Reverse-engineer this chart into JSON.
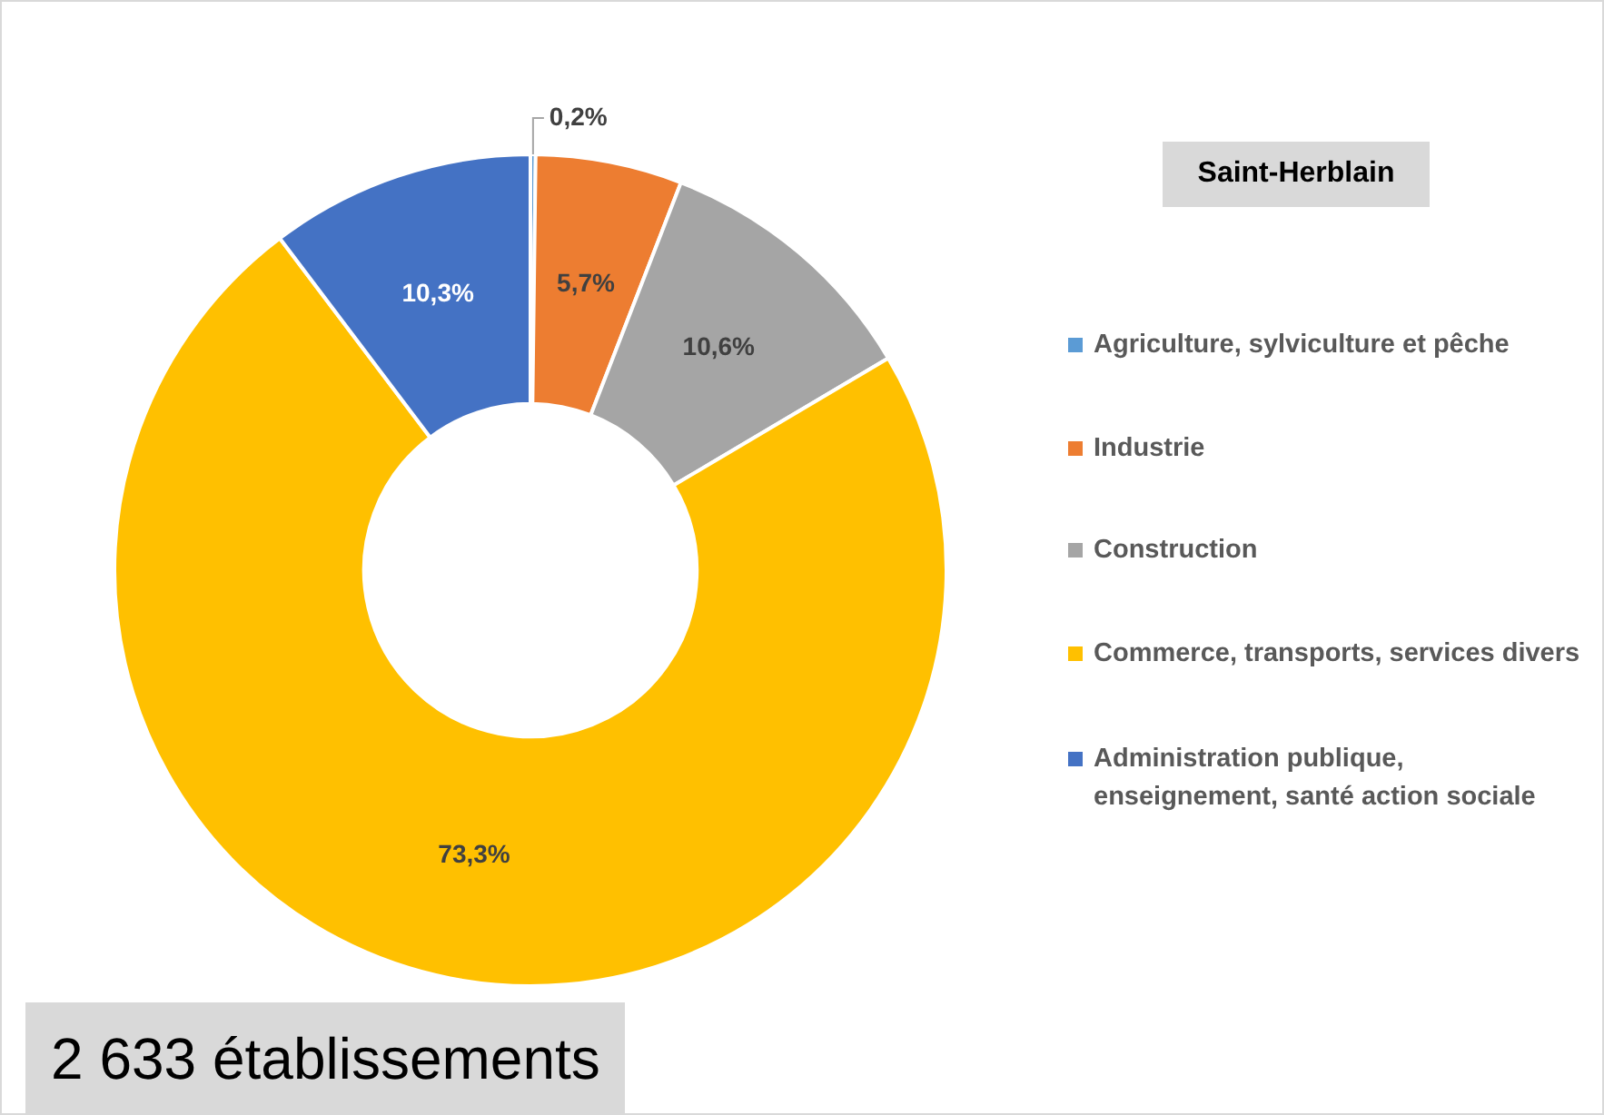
{
  "chart_data": {
    "type": "donut",
    "title": "Saint-Herblain",
    "categories": [
      "Agriculture, sylviculture et pêche",
      "Industrie",
      "Construction",
      "Commerce, transports, services divers",
      "Administration publique, enseignement, santé action sociale"
    ],
    "values": [
      0.2,
      5.7,
      10.6,
      73.3,
      10.3
    ],
    "value_labels": [
      "0,2%",
      "5,7%",
      "10,6%",
      "73,3%",
      "10,3%"
    ],
    "colors": [
      "#5b9bd5",
      "#ed7d31",
      "#a5a5a5",
      "#ffc000",
      "#4472c4"
    ],
    "legend": "right",
    "annotations": [
      "2 633 établissements"
    ]
  }
}
